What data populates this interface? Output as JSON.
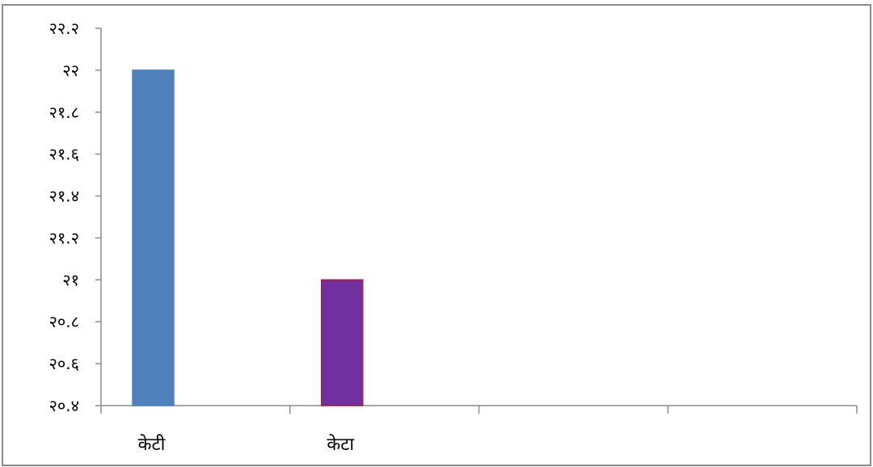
{
  "chart_data": {
    "type": "bar",
    "categories": [
      "केटी",
      "केटा",
      "",
      ""
    ],
    "values": [
      22,
      21,
      null,
      null
    ],
    "ylim": [
      20.4,
      22.2
    ],
    "yticks": [
      20.4,
      20.6,
      20.8,
      21,
      21.2,
      21.4,
      21.6,
      21.8,
      22,
      22.2
    ],
    "ytick_labels": [
      "२०.४",
      "२०.६",
      "२०.८",
      "२१",
      "२१.२",
      "२१.४",
      "२१.६",
      "२१.८",
      "२२",
      "२२.२"
    ],
    "bar_colors": [
      "#4f81bd",
      "#7030a0"
    ],
    "bar_borders": [
      "#4f81bd",
      "#c0143c"
    ],
    "title": "",
    "xlabel": "",
    "ylabel": "",
    "grid": false,
    "legend": "none"
  }
}
